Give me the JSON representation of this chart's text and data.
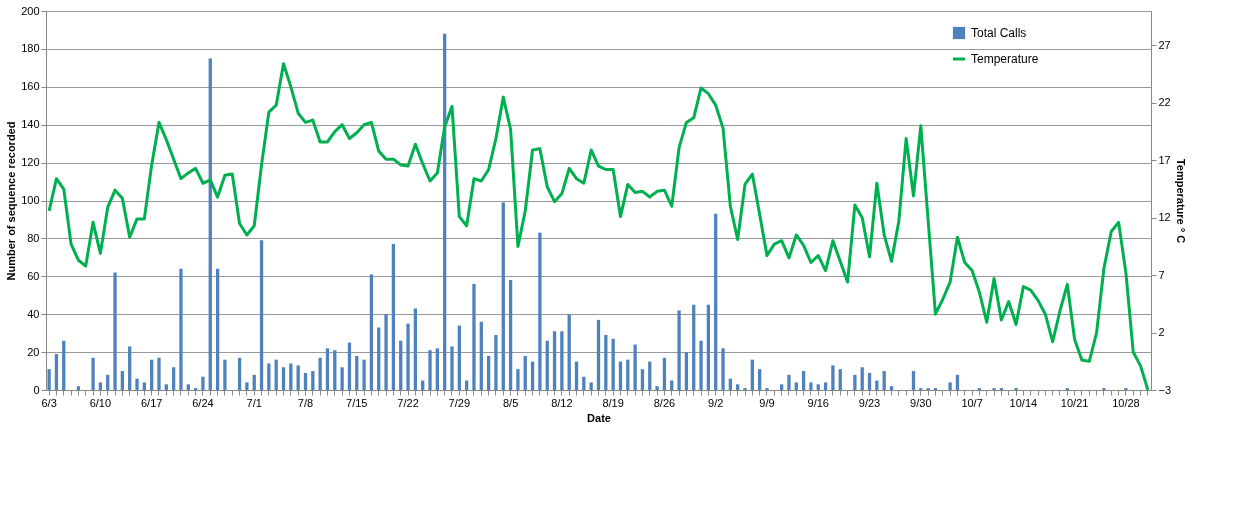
{
  "chart_data": {
    "type": "bar",
    "xlabel": "Date",
    "ylabel": "Number of sequence recorded",
    "y2label": "Temperature ° C",
    "categories": [
      "6/3",
      null,
      null,
      null,
      null,
      null,
      null,
      "6/10",
      null,
      null,
      null,
      null,
      null,
      null,
      "6/17",
      null,
      null,
      null,
      null,
      null,
      null,
      "6/24",
      null,
      null,
      null,
      null,
      null,
      null,
      "7/1",
      null,
      null,
      null,
      null,
      null,
      null,
      "7/8",
      null,
      null,
      null,
      null,
      null,
      null,
      "7/15",
      null,
      null,
      null,
      null,
      null,
      null,
      "7/22",
      null,
      null,
      null,
      null,
      null,
      null,
      "7/29",
      null,
      null,
      null,
      null,
      null,
      null,
      "8/5",
      null,
      null,
      null,
      null,
      null,
      null,
      "8/12",
      null,
      null,
      null,
      null,
      null,
      null,
      "8/19",
      null,
      null,
      null,
      null,
      null,
      null,
      "8/26",
      null,
      null,
      null,
      null,
      null,
      null,
      "9/2",
      null,
      null,
      null,
      null,
      null,
      null,
      "9/9",
      null,
      null,
      null,
      null,
      null,
      null,
      "9/16",
      null,
      null,
      null,
      null,
      null,
      null,
      "9/23",
      null,
      null,
      null,
      null,
      null,
      null,
      "9/30",
      null,
      null,
      null,
      null,
      null,
      null,
      "10/7",
      null,
      null,
      null,
      null,
      null,
      null,
      "10/14",
      null,
      null,
      null,
      null,
      null,
      null,
      "10/21",
      null,
      null,
      null,
      null,
      null,
      null,
      "10/28",
      null,
      null,
      null
    ],
    "series": [
      {
        "name": "Total Calls",
        "color": "#4f81bd",
        "values": [
          11,
          19,
          26,
          0,
          2,
          0,
          17,
          4,
          8,
          62,
          10,
          23,
          6,
          4,
          16,
          17,
          3,
          12,
          64,
          3,
          1,
          7,
          175,
          64,
          16,
          0,
          17,
          4,
          8,
          79,
          14,
          16,
          12,
          14,
          13,
          9,
          10,
          17,
          22,
          21,
          12,
          25,
          18,
          16,
          61,
          33,
          40,
          77,
          26,
          35,
          43,
          5,
          21,
          22,
          188,
          23,
          34,
          5,
          56,
          36,
          18,
          29,
          99,
          58,
          11,
          18,
          15,
          83,
          26,
          31,
          31,
          40,
          15,
          7,
          4,
          37,
          29,
          27,
          15,
          16,
          24,
          11,
          15,
          2,
          17,
          5,
          42,
          20,
          45,
          26,
          45,
          93,
          22,
          6,
          3,
          1,
          16,
          11,
          1,
          0,
          3,
          8,
          4,
          10,
          4,
          3,
          4,
          13,
          11,
          0,
          8,
          12,
          9,
          5,
          10,
          2,
          0,
          0,
          10,
          1,
          1,
          1,
          0,
          4,
          8,
          0,
          0,
          1,
          0,
          1,
          1,
          0,
          1,
          0,
          0,
          0,
          0,
          0,
          0,
          1,
          0,
          0,
          0,
          0,
          1,
          0,
          0,
          1,
          0,
          0,
          0
        ]
      },
      {
        "name": "Temperature",
        "type": "line",
        "axis": "y2",
        "color": "#00b050",
        "values": [
          12.6,
          15.4,
          14.5,
          9.7,
          8.3,
          7.8,
          11.6,
          8.9,
          12.9,
          14.4,
          13.7,
          10.3,
          11.9,
          11.9,
          16.6,
          20.3,
          18.8,
          17.1,
          15.4,
          15.9,
          16.3,
          15.0,
          15.3,
          13.8,
          15.7,
          15.8,
          11.5,
          10.5,
          11.3,
          16.6,
          21.2,
          21.8,
          25.4,
          23.4,
          21.1,
          20.3,
          20.5,
          18.6,
          18.6,
          19.5,
          20.1,
          18.9,
          19.4,
          20.1,
          20.3,
          17.8,
          17.1,
          17.1,
          16.6,
          16.5,
          18.4,
          16.7,
          15.2,
          15.9,
          19.9,
          21.7,
          12.1,
          11.3,
          15.4,
          15.2,
          16.2,
          18.9,
          22.5,
          19.7,
          9.5,
          12.6,
          17.9,
          18.0,
          14.7,
          13.4,
          14.1,
          16.3,
          15.4,
          15.0,
          17.9,
          16.5,
          16.2,
          16.2,
          12.1,
          14.9,
          14.2,
          14.3,
          13.8,
          14.3,
          14.4,
          13.0,
          18.1,
          20.3,
          20.7,
          23.3,
          22.8,
          21.8,
          19.8,
          13.0,
          10.1,
          14.9,
          15.8,
          12.3,
          8.7,
          9.7,
          10.0,
          8.5,
          10.5,
          9.6,
          8.1,
          8.7,
          7.4,
          10.0,
          8.2,
          6.4,
          13.1,
          12.0,
          8.6,
          15.0,
          10.5,
          8.2,
          11.7,
          18.9,
          13.9,
          20.0,
          11.8,
          3.6,
          4.9,
          6.4,
          10.3,
          8.1,
          7.4,
          5.5,
          2.9,
          6.7,
          3.1,
          4.7,
          2.7,
          6.0,
          5.7,
          4.8,
          3.6,
          1.2,
          3.9,
          6.2,
          1.4,
          -0.4,
          -0.5,
          2.0,
          7.6,
          10.8,
          11.6,
          7.2,
          0.3,
          -0.9,
          -3.0
        ]
      }
    ],
    "ylim": [
      0,
      200
    ],
    "yticks": [
      0,
      20,
      40,
      60,
      80,
      100,
      120,
      140,
      160,
      180,
      200
    ],
    "y2lim": [
      -3,
      30
    ],
    "y2ticks": [
      -3,
      2,
      7,
      12,
      17,
      22,
      27
    ],
    "grid": "y",
    "legend": "top right"
  }
}
